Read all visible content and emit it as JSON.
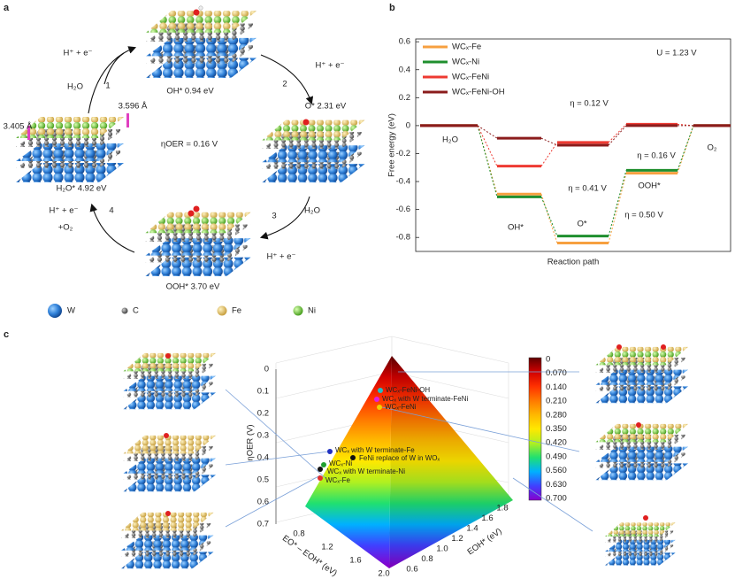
{
  "panel_a": {
    "letter": "a",
    "states": [
      "OH* 0.94 eV",
      "O* 2.31 eV",
      "OOH* 3.70 eV",
      "H₂O* 4.92 eV"
    ],
    "steps": [
      {
        "number": "1",
        "in": "H₂O",
        "out": "H⁺ + e⁻"
      },
      {
        "number": "2",
        "out": "H⁺ + e⁻"
      },
      {
        "number": "3",
        "in": "H₂O",
        "out": "H⁺ + e⁻"
      },
      {
        "number": "4",
        "out": "H⁺ + e⁻",
        "extra": "+O₂"
      }
    ],
    "distances": [
      "3.596 Å",
      "3.405 Å"
    ],
    "overpotential": "ηOER = 0.16 V",
    "legend": [
      "W",
      "C",
      "Fe",
      "Ni"
    ]
  },
  "chart_data": {
    "type": "step",
    "letter": "b",
    "ylabel": "Free energy (eV)",
    "xlabel": "Reaction path",
    "categories": [
      "H₂O",
      "OH*",
      "O*",
      "OOH*",
      "O₂"
    ],
    "series": [
      {
        "name": "WCₓ-Fe",
        "color": "#f7a040",
        "values": [
          0,
          -0.49,
          -0.84,
          -0.34,
          0
        ]
      },
      {
        "name": "WCₓ-Ni",
        "color": "#1f8f2e",
        "values": [
          0,
          -0.51,
          -0.79,
          -0.32,
          0
        ]
      },
      {
        "name": "WCₓ-FeNi",
        "color": "#ee3a32",
        "values": [
          0,
          -0.29,
          -0.12,
          0.01,
          0
        ]
      },
      {
        "name": "WCₓ-FeNi-OH",
        "color": "#8b1c1c",
        "values": [
          0,
          -0.09,
          -0.14,
          0.0,
          0
        ]
      }
    ],
    "annotations": [
      "U = 1.23 V",
      "η = 0.12 V",
      "η = 0.16 V",
      "η = 0.41 V",
      "η = 0.50 V"
    ],
    "ylim": [
      -0.9,
      0.62
    ],
    "yticks": [
      0.6,
      0.4,
      0.2,
      0,
      -0.2,
      -0.4,
      -0.6,
      -0.8
    ],
    "legend": "upper left"
  },
  "panel_c": {
    "letter": "c",
    "ylabel": "ηOER (V)",
    "yticks": [
      "0",
      "0.1",
      "0.2",
      "0.3",
      "0.4",
      "0.5",
      "0.6",
      "0.7"
    ],
    "xlabel": "EO* – EOH* (eV)",
    "xticks": [
      "0.8",
      "1.2",
      "1.6",
      "2.0"
    ],
    "zlabel": "EOH* (eV)",
    "zticks": [
      "0.6",
      "0.8",
      "1.0",
      "1.2",
      "1.4",
      "1.6",
      "1.8"
    ],
    "colorbar": [
      "0",
      "0.070",
      "0.140",
      "0.210",
      "0.280",
      "0.350",
      "0.420",
      "0.490",
      "0.560",
      "0.630",
      "0.700"
    ],
    "points": [
      {
        "label": "WCₓ-FeNi-OH",
        "color": "#20c0c8"
      },
      {
        "label": "WCₓ with W terminate-FeNi",
        "color": "#e020e0"
      },
      {
        "label": "WCₓ-FeNi",
        "color": "#f0d000"
      },
      {
        "label": "WCₓ with W terminate-Fe",
        "color": "#2030c0"
      },
      {
        "label": "FeNi replace of W in WOₓ",
        "color": "#111111"
      },
      {
        "label": "WCₓ-Ni",
        "color": "#20a030"
      },
      {
        "label": "WCₓ with W terminate-Ni",
        "color": "#111111"
      },
      {
        "label": "WCₓ-Fe",
        "color": "#e03030"
      }
    ]
  }
}
